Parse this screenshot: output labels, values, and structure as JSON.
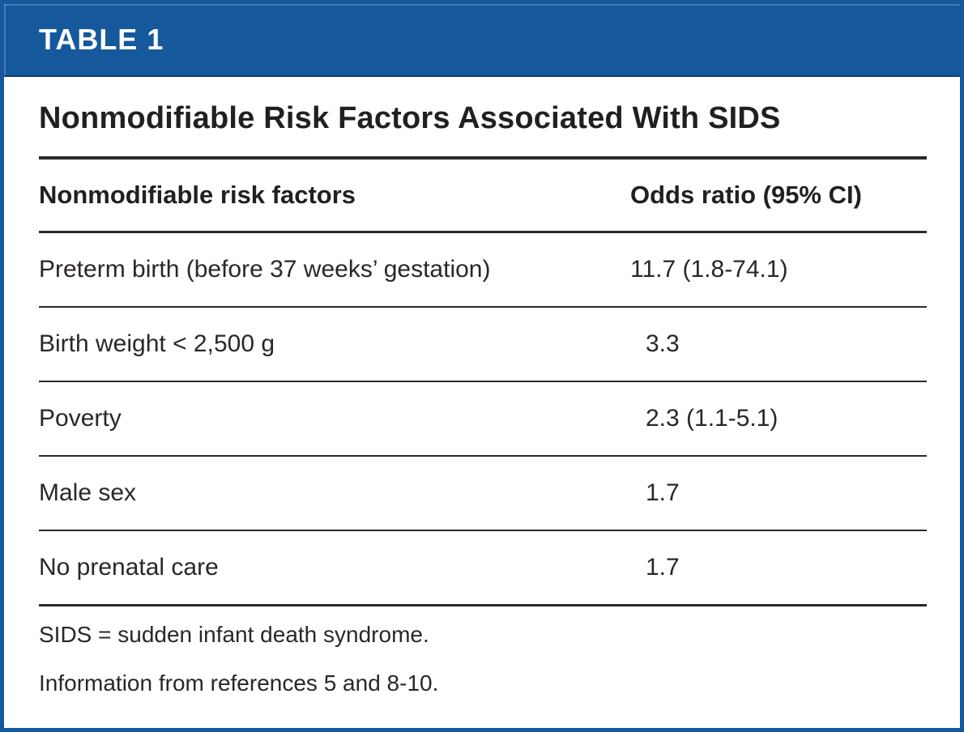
{
  "header": {
    "tag": "TABLE 1"
  },
  "title": "Nonmodifiable Risk Factors Associated With SIDS",
  "columns": {
    "factor": "Nonmodifiable risk factors",
    "odds": "Odds ratio (95% CI)"
  },
  "rows": [
    {
      "factor": "Preterm birth (before 37 weeks’ gestation)",
      "odds": "11.7 (1.8-74.1)"
    },
    {
      "factor": "Birth weight < 2,500 g",
      "odds": "3.3"
    },
    {
      "factor": "Poverty",
      "odds": "2.3 (1.1-5.1)"
    },
    {
      "factor": "Male sex",
      "odds": "1.7"
    },
    {
      "factor": "No prenatal care",
      "odds": "1.7"
    }
  ],
  "footnotes": [
    "SIDS = sudden infant death syndrome.",
    "Information from references 5 and 8-10."
  ],
  "colors": {
    "accent_blue": "#15599c",
    "header_text": "#ffffff",
    "body_text": "#231f20",
    "rule": "#2a2a2a"
  }
}
